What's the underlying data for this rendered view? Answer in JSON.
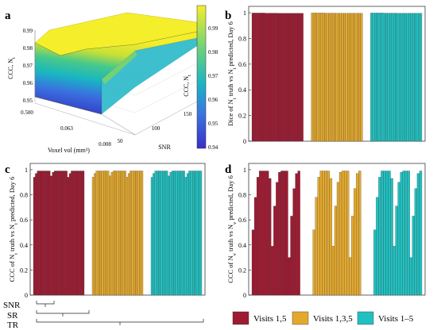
{
  "colors": {
    "visits_135_odd": "#9e1b32",
    "visits_135": "#e3a92f",
    "visits_1_5": "#22c0c0",
    "bar_edge": "#333333",
    "surface_low": "#3a2ec8",
    "surface_mid": "#1cb4c4",
    "surface_high": "#f3ee2c"
  },
  "legend": {
    "items": [
      {
        "label": "Visits 1,5",
        "color": "#9e1b32"
      },
      {
        "label": "Visits 1,3,5",
        "color": "#e3a92f"
      },
      {
        "label": "Visits 1–5",
        "color": "#22c0c0"
      }
    ]
  },
  "chart_data": [
    {
      "panel": "a",
      "type": "surface3d",
      "xlabel": "Voxel vol (mm³)",
      "ylabel": "SNR",
      "zlabel": "CCC, N",
      "zlabel_subscript": "t",
      "x_ticks": [
        "0.500",
        "0.063",
        "0.008"
      ],
      "y_ticks": [
        "50",
        "100",
        "150"
      ],
      "z_ticks": [
        "0.95",
        "0.96",
        "0.97",
        "0.98",
        "0.99"
      ],
      "zlim": [
        0.94,
        1.0
      ],
      "colorbar": {
        "ticks": [
          "0.99",
          "0.98",
          "0.97",
          "0.96",
          "0.95",
          "0.94"
        ],
        "label": "CCC, N",
        "label_subscript": "t",
        "range": [
          0.94,
          1.0
        ]
      }
    },
    {
      "panel": "b",
      "type": "bar",
      "ylabel": "Dice of N_t truth vs N_t predicted, Day 6",
      "ylim": [
        0,
        1.05
      ],
      "y_ticks": [
        "0",
        "0.2",
        "0.4",
        "0.6",
        "0.8",
        "1"
      ],
      "series": [
        {
          "name": "Visits 1,5",
          "values": [
            0.998,
            0.998,
            0.998,
            0.998,
            0.998,
            0.998,
            0.998,
            0.997,
            0.997,
            0.997,
            0.997,
            0.997,
            0.997,
            0.997,
            0.996,
            0.996,
            0.996,
            0.996,
            0.996,
            0.996,
            0.996,
            0.996,
            0.996,
            0.996,
            0.996,
            0.996,
            0.996
          ]
        },
        {
          "name": "Visits 1,3,5",
          "values": [
            0.998,
            0.998,
            0.998,
            0.998,
            0.998,
            0.998,
            0.998,
            0.997,
            0.997,
            0.997,
            0.997,
            0.997,
            0.997,
            0.997,
            0.996,
            0.996,
            0.996,
            0.996,
            0.996,
            0.996,
            0.996,
            0.996,
            0.996,
            0.996,
            0.996,
            0.996,
            0.996
          ]
        },
        {
          "name": "Visits 1–5",
          "values": [
            0.998,
            0.998,
            0.998,
            0.998,
            0.998,
            0.998,
            0.998,
            0.997,
            0.997,
            0.997,
            0.997,
            0.997,
            0.997,
            0.997,
            0.996,
            0.996,
            0.996,
            0.996,
            0.996,
            0.996,
            0.996,
            0.996,
            0.996,
            0.996,
            0.996,
            0.996,
            0.996
          ]
        }
      ]
    },
    {
      "panel": "c",
      "type": "bar",
      "ylabel": "CCC of N_t truth vs N_t predicted, Day 6",
      "ylim": [
        0,
        1.05
      ],
      "y_ticks": [
        "0",
        "0.2",
        "0.4",
        "0.6",
        "0.8",
        "1"
      ],
      "grouping_labels": [
        "SNR",
        "SR",
        "TR"
      ],
      "series": [
        {
          "name": "Visits 1,5",
          "values": [
            0.94,
            0.97,
            0.99,
            0.99,
            0.99,
            0.99,
            0.99,
            0.99,
            0.99,
            0.95,
            0.98,
            0.99,
            0.99,
            0.99,
            0.99,
            0.99,
            0.99,
            0.99,
            0.94,
            0.97,
            0.99,
            0.99,
            0.99,
            0.99,
            0.99,
            0.99,
            0.99
          ]
        },
        {
          "name": "Visits 1,3,5",
          "values": [
            0.94,
            0.97,
            0.99,
            0.99,
            0.99,
            0.99,
            0.99,
            0.99,
            0.99,
            0.95,
            0.98,
            0.99,
            0.99,
            0.99,
            0.99,
            0.99,
            0.99,
            0.99,
            0.94,
            0.97,
            0.99,
            0.99,
            0.99,
            0.99,
            0.99,
            0.99,
            0.99
          ]
        },
        {
          "name": "Visits 1–5",
          "values": [
            0.94,
            0.97,
            0.99,
            0.99,
            0.99,
            0.99,
            0.99,
            0.99,
            0.99,
            0.95,
            0.98,
            0.99,
            0.99,
            0.99,
            0.99,
            0.99,
            0.99,
            0.99,
            0.94,
            0.97,
            0.99,
            0.99,
            0.99,
            0.99,
            0.99,
            0.99,
            0.99
          ]
        }
      ]
    },
    {
      "panel": "d",
      "type": "bar",
      "ylabel": "CCC of N_v truth vs N_v predicted, Day 6",
      "ylim": [
        0,
        1.05
      ],
      "y_ticks": [
        "0",
        "0.2",
        "0.4",
        "0.6",
        "0.8",
        "1"
      ],
      "series": [
        {
          "name": "Visits 1,5",
          "values": [
            0.52,
            0.78,
            0.94,
            0.99,
            0.99,
            0.99,
            0.99,
            0.93,
            0.39,
            0.71,
            0.9,
            0.98,
            0.99,
            0.99,
            0.99,
            0.3,
            0.63,
            0.85,
            0.97,
            0.99
          ]
        },
        {
          "name": "Visits 1,3,5",
          "values": [
            0.52,
            0.78,
            0.94,
            0.99,
            0.99,
            0.99,
            0.99,
            0.93,
            0.39,
            0.71,
            0.9,
            0.98,
            0.99,
            0.99,
            0.99,
            0.3,
            0.63,
            0.85,
            0.97,
            0.99
          ]
        },
        {
          "name": "Visits 1–5",
          "values": [
            0.52,
            0.78,
            0.94,
            0.99,
            0.99,
            0.99,
            0.99,
            0.93,
            0.39,
            0.71,
            0.9,
            0.98,
            0.99,
            0.99,
            0.99,
            0.3,
            0.63,
            0.85,
            0.97,
            0.99
          ]
        }
      ]
    }
  ],
  "panel_labels": [
    "a",
    "b",
    "c",
    "d"
  ]
}
